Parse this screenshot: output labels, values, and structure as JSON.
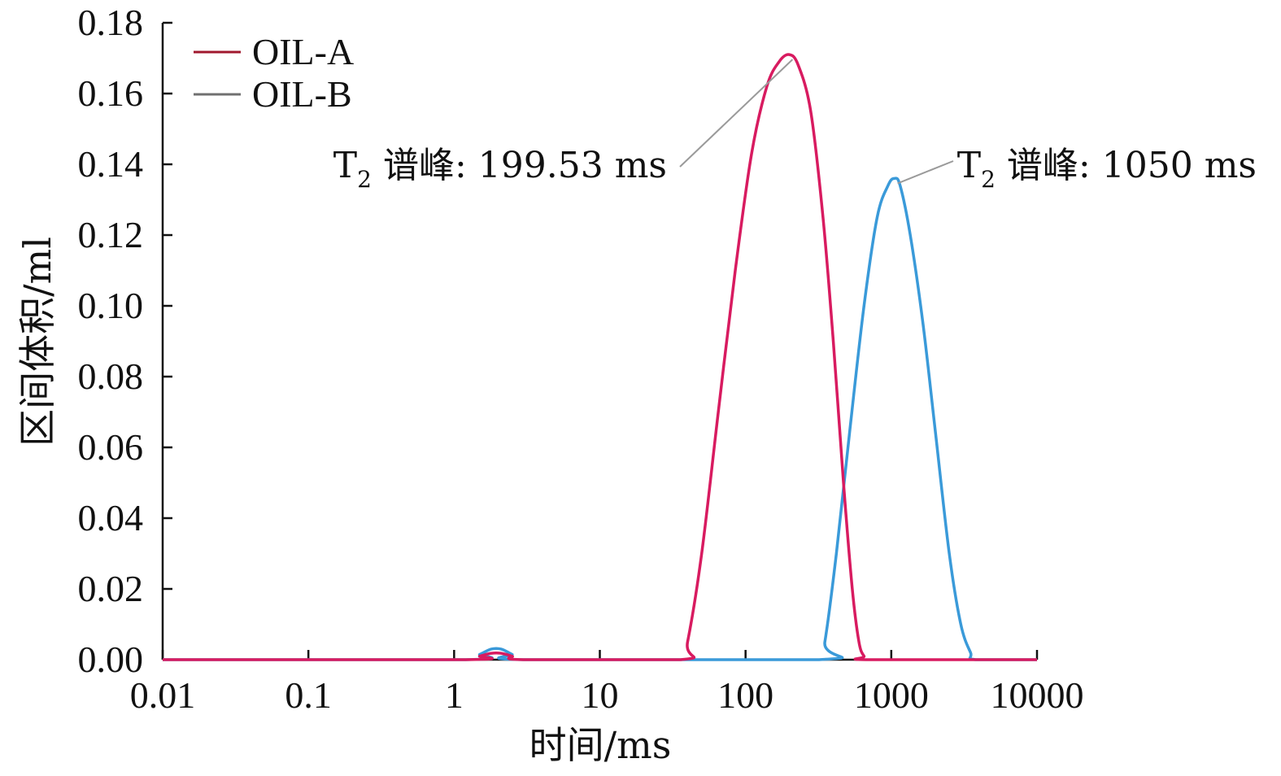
{
  "chart_data": {
    "type": "line",
    "xlabel": "时间/ms",
    "ylabel": "区间体积/ml",
    "x_scale": "log",
    "xlim": [
      0.01,
      10000
    ],
    "ylim": [
      0,
      0.18
    ],
    "x_ticks": [
      "0.01",
      "0.1",
      "1",
      "10",
      "100",
      "1000",
      "10000"
    ],
    "y_ticks": [
      "0.00",
      "0.02",
      "0.04",
      "0.06",
      "0.08",
      "0.10",
      "0.12",
      "0.14",
      "0.16",
      "0.18"
    ],
    "grid": false,
    "legend_position": "top-left",
    "series": [
      {
        "name": "OIL-A",
        "color": "#d81b60",
        "legend_color": "#a0182e",
        "x": [
          0.01,
          1.2,
          1.5,
          1.8,
          2.1,
          2.5,
          3.0,
          36,
          40,
          50,
          65,
          85,
          110,
          140,
          170,
          199.53,
          230,
          280,
          340,
          400,
          470,
          540,
          600,
          650,
          700,
          10000
        ],
        "y": [
          0,
          0,
          0.001,
          0.0018,
          0.0018,
          0.001,
          0,
          0,
          0.005,
          0.03,
          0.07,
          0.11,
          0.143,
          0.162,
          0.169,
          0.171,
          0.168,
          0.155,
          0.125,
          0.09,
          0.05,
          0.02,
          0.005,
          0.001,
          0,
          0
        ]
      },
      {
        "name": "OIL-B",
        "color": "#3a9ad9",
        "legend_color": "#707070",
        "x": [
          0.01,
          1.2,
          1.5,
          1.8,
          2.1,
          2.5,
          3.0,
          320,
          350,
          420,
          520,
          650,
          800,
          950,
          1050,
          1150,
          1350,
          1650,
          2000,
          2500,
          3000,
          3500,
          3800,
          10000
        ],
        "y": [
          0,
          0,
          0.0015,
          0.003,
          0.003,
          0.0015,
          0,
          0,
          0.005,
          0.03,
          0.065,
          0.1,
          0.125,
          0.134,
          0.136,
          0.134,
          0.12,
          0.095,
          0.065,
          0.03,
          0.01,
          0.002,
          0,
          0
        ]
      }
    ],
    "annotations": [
      {
        "prefix": "T",
        "sub": "2",
        "label": " 谱峰: 199.53 ms",
        "x": 199.53,
        "y": 0.171
      },
      {
        "prefix": "T",
        "sub": "2",
        "label": " 谱峰: 1050 ms",
        "x": 1050,
        "y": 0.136
      }
    ]
  }
}
